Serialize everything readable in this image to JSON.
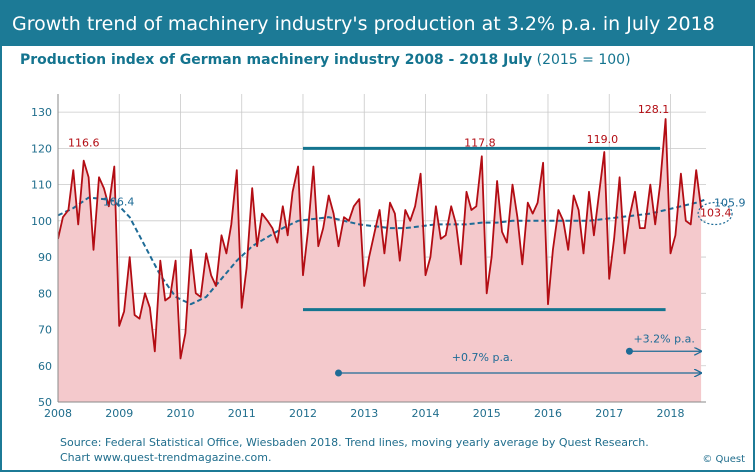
{
  "header": {
    "title": "Growth trend of machinery industry's production at 3.2% p.a. in July 2018"
  },
  "chart_data": {
    "type": "line",
    "title": "Production index of German machinery industry 2008 - 2018 July",
    "subtitle": "(2015 = 100)",
    "xlabel": "",
    "ylabel": "",
    "xlim": [
      2008,
      2018.58
    ],
    "ylim": [
      50,
      135
    ],
    "x_ticks": [
      "2008",
      "2009",
      "2010",
      "2011",
      "2012",
      "2013",
      "2014",
      "2015",
      "2016",
      "2017",
      "2018"
    ],
    "y_ticks": [
      "50",
      "60",
      "70",
      "80",
      "90",
      "100",
      "110",
      "120",
      "130"
    ],
    "grid": true,
    "colors": {
      "production": "#b30d14",
      "fill": "#f4c9cc",
      "trend": "#1e6b96",
      "lines": "#14748f"
    },
    "series": [
      {
        "name": "",
        "style": "solid",
        "values": [
          [
            2008.0,
            95
          ],
          [
            2008.08,
            101
          ],
          [
            2008.17,
            103
          ],
          [
            2008.25,
            114
          ],
          [
            2008.33,
            99
          ],
          [
            2008.42,
            116.6
          ],
          [
            2008.5,
            112
          ],
          [
            2008.58,
            92
          ],
          [
            2008.67,
            112
          ],
          [
            2008.75,
            109
          ],
          [
            2008.83,
            104
          ],
          [
            2008.92,
            115
          ],
          [
            2009.0,
            71
          ],
          [
            2009.08,
            75
          ],
          [
            2009.17,
            90
          ],
          [
            2009.25,
            74
          ],
          [
            2009.33,
            73
          ],
          [
            2009.42,
            80
          ],
          [
            2009.5,
            76
          ],
          [
            2009.58,
            64
          ],
          [
            2009.67,
            89
          ],
          [
            2009.75,
            78
          ],
          [
            2009.83,
            79
          ],
          [
            2009.92,
            89
          ],
          [
            2010.0,
            62
          ],
          [
            2010.08,
            69
          ],
          [
            2010.17,
            92
          ],
          [
            2010.25,
            80
          ],
          [
            2010.33,
            79
          ],
          [
            2010.42,
            91
          ],
          [
            2010.5,
            85
          ],
          [
            2010.58,
            82
          ],
          [
            2010.67,
            96
          ],
          [
            2010.75,
            91
          ],
          [
            2010.83,
            99
          ],
          [
            2010.92,
            114
          ],
          [
            2011.0,
            76
          ],
          [
            2011.08,
            87
          ],
          [
            2011.17,
            109
          ],
          [
            2011.25,
            93
          ],
          [
            2011.33,
            102
          ],
          [
            2011.42,
            100
          ],
          [
            2011.5,
            98
          ],
          [
            2011.58,
            94
          ],
          [
            2011.67,
            104
          ],
          [
            2011.75,
            96
          ],
          [
            2011.83,
            108
          ],
          [
            2011.92,
            115
          ],
          [
            2012.0,
            85
          ],
          [
            2012.08,
            97
          ],
          [
            2012.17,
            115
          ],
          [
            2012.25,
            93
          ],
          [
            2012.33,
            98
          ],
          [
            2012.42,
            107
          ],
          [
            2012.5,
            102
          ],
          [
            2012.58,
            93
          ],
          [
            2012.67,
            101
          ],
          [
            2012.75,
            100
          ],
          [
            2012.83,
            104
          ],
          [
            2012.92,
            106
          ],
          [
            2013.0,
            82
          ],
          [
            2013.08,
            90
          ],
          [
            2013.17,
            97
          ],
          [
            2013.25,
            103
          ],
          [
            2013.33,
            91
          ],
          [
            2013.42,
            105
          ],
          [
            2013.5,
            102
          ],
          [
            2013.58,
            89
          ],
          [
            2013.67,
            103
          ],
          [
            2013.75,
            100
          ],
          [
            2013.83,
            104
          ],
          [
            2013.92,
            113
          ],
          [
            2014.0,
            85
          ],
          [
            2014.08,
            90
          ],
          [
            2014.17,
            104
          ],
          [
            2014.25,
            95
          ],
          [
            2014.33,
            96
          ],
          [
            2014.42,
            104
          ],
          [
            2014.5,
            99
          ],
          [
            2014.58,
            88
          ],
          [
            2014.67,
            108
          ],
          [
            2014.75,
            103
          ],
          [
            2014.83,
            104
          ],
          [
            2014.92,
            117.8
          ],
          [
            2015.0,
            80
          ],
          [
            2015.08,
            90
          ],
          [
            2015.17,
            111
          ],
          [
            2015.25,
            97
          ],
          [
            2015.33,
            94
          ],
          [
            2015.42,
            110
          ],
          [
            2015.5,
            101
          ],
          [
            2015.58,
            88
          ],
          [
            2015.67,
            105
          ],
          [
            2015.75,
            102
          ],
          [
            2015.83,
            105
          ],
          [
            2015.92,
            116
          ],
          [
            2016.0,
            77
          ],
          [
            2016.08,
            92
          ],
          [
            2016.17,
            103
          ],
          [
            2016.25,
            100
          ],
          [
            2016.33,
            92
          ],
          [
            2016.42,
            107
          ],
          [
            2016.5,
            103
          ],
          [
            2016.58,
            91
          ],
          [
            2016.67,
            108
          ],
          [
            2016.75,
            96
          ],
          [
            2016.83,
            107
          ],
          [
            2016.92,
            119.0
          ],
          [
            2017.0,
            84
          ],
          [
            2017.08,
            95
          ],
          [
            2017.17,
            112
          ],
          [
            2017.25,
            91
          ],
          [
            2017.33,
            101
          ],
          [
            2017.42,
            108
          ],
          [
            2017.5,
            98
          ],
          [
            2017.58,
            98
          ],
          [
            2017.67,
            110
          ],
          [
            2017.75,
            99
          ],
          [
            2017.83,
            110
          ],
          [
            2017.92,
            128.1
          ],
          [
            2018.0,
            91
          ],
          [
            2018.08,
            96
          ],
          [
            2018.17,
            113
          ],
          [
            2018.25,
            100
          ],
          [
            2018.33,
            99
          ],
          [
            2018.42,
            114
          ],
          [
            2018.5,
            103.4
          ]
        ]
      },
      {
        "name": "",
        "style": "dashed",
        "values": [
          [
            2008.0,
            101.5
          ],
          [
            2008.25,
            103.5
          ],
          [
            2008.5,
            106.4
          ],
          [
            2008.75,
            106
          ],
          [
            2008.92,
            105.5
          ],
          [
            2009.17,
            101
          ],
          [
            2009.42,
            93
          ],
          [
            2009.67,
            85
          ],
          [
            2009.92,
            79
          ],
          [
            2010.17,
            77
          ],
          [
            2010.42,
            79
          ],
          [
            2010.67,
            84
          ],
          [
            2010.92,
            89
          ],
          [
            2011.17,
            93
          ],
          [
            2011.42,
            95.5
          ],
          [
            2011.67,
            98
          ],
          [
            2011.92,
            100
          ],
          [
            2012.17,
            100.5
          ],
          [
            2012.42,
            101
          ],
          [
            2012.67,
            100
          ],
          [
            2012.92,
            99
          ],
          [
            2013.17,
            98.5
          ],
          [
            2013.42,
            98
          ],
          [
            2013.67,
            98
          ],
          [
            2013.92,
            98.5
          ],
          [
            2014.17,
            99
          ],
          [
            2014.42,
            99
          ],
          [
            2014.67,
            99
          ],
          [
            2014.92,
            99.5
          ],
          [
            2015.17,
            99.5
          ],
          [
            2015.42,
            100
          ],
          [
            2015.67,
            100
          ],
          [
            2015.92,
            100
          ],
          [
            2016.17,
            100
          ],
          [
            2016.42,
            100
          ],
          [
            2016.67,
            100
          ],
          [
            2016.92,
            100.5
          ],
          [
            2017.17,
            101
          ],
          [
            2017.42,
            101.5
          ],
          [
            2017.67,
            102
          ],
          [
            2017.92,
            103
          ],
          [
            2018.17,
            104
          ],
          [
            2018.42,
            105
          ],
          [
            2018.58,
            105.9
          ]
        ]
      }
    ],
    "annotations": [
      {
        "text": "116.6",
        "x": 2008.42,
        "y": 116.6,
        "color": "#b30d14"
      },
      {
        "text": "106.4",
        "x": 2008.5,
        "y": 106.4,
        "color": "#1e6b96"
      },
      {
        "text": "117.8",
        "x": 2014.92,
        "y": 117.8,
        "color": "#b30d14"
      },
      {
        "text": "119.0",
        "x": 2016.92,
        "y": 119.0,
        "color": "#b30d14"
      },
      {
        "text": "128.1",
        "x": 2017.92,
        "y": 128.1,
        "color": "#b30d14"
      },
      {
        "text": "105.9",
        "x": 2018.58,
        "y": 105.9,
        "color": "#1e6b96"
      },
      {
        "text": "103.4",
        "x": 2018.58,
        "y": 103.4,
        "color": "#b30d14"
      },
      {
        "text": "+0.7% p.a.",
        "color": "#1e6b96"
      },
      {
        "text": "+3.2% p.a.",
        "color": "#1e6b96"
      }
    ],
    "range_lines": [
      {
        "x_start": 2012.0,
        "x_end": 2017.83,
        "y": 120
      },
      {
        "x_start": 2012.0,
        "x_end": 2017.92,
        "y": 75.5
      }
    ],
    "growth_arrows": [
      {
        "label": "+0.7% p.a.",
        "x_start": 2012.58,
        "x_end": 2018.5,
        "y": 58
      },
      {
        "label": "+3.2% p.a.",
        "x_start": 2017.33,
        "x_end": 2018.5,
        "y": 64
      }
    ]
  },
  "footer": {
    "source_line1": "Source: Federal Statistical Office, Wiesbaden 2018. Trend lines, moving yearly average by Quest Research.",
    "source_line2": "Chart www.quest-trendmagazine.com.",
    "copyright": "© Quest"
  }
}
